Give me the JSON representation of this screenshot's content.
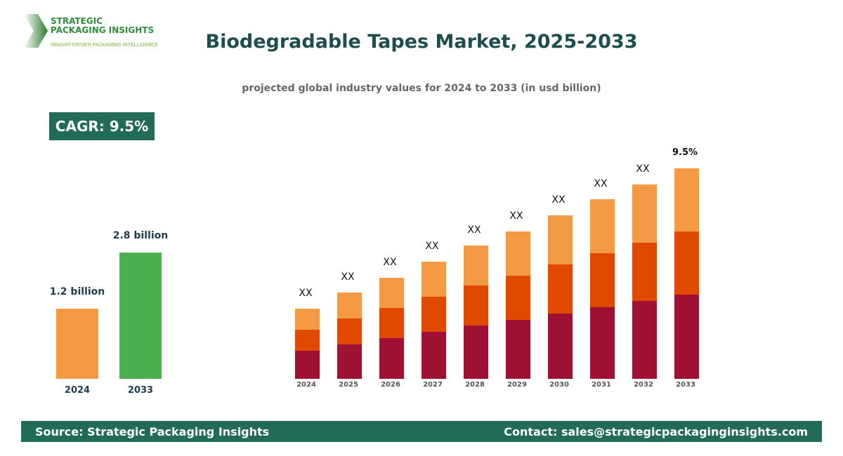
{
  "logo": {
    "line1": "STRATEGIC",
    "line2": "PACKAGING INSIGHTS",
    "tagline": "INSIGHT-DRIVEN PACKAGING INTELLIGENCE"
  },
  "header": {
    "title": "Biodegradable Tapes Market, 2025-2033",
    "subtitle": "projected global industry values for 2024 to 2033 (in usd billion)"
  },
  "cagr_badge": "CAGR: 9.5%",
  "colors": {
    "brand": "#226b58",
    "title": "#1e4d4d",
    "bar_2024": "#f49a44",
    "bar_2033": "#4caf50",
    "segment_top": "#f49a44",
    "segment_mid": "#e04a00",
    "segment_bottom": "#9e1133"
  },
  "chart_data": [
    {
      "type": "bar",
      "categories": [
        "2024",
        "2033"
      ],
      "values": [
        1.2,
        2.8
      ],
      "data_labels": [
        "1.2 billion",
        "2.8 billion"
      ],
      "unit": "usd billion"
    },
    {
      "type": "bar",
      "stacked": true,
      "categories": [
        "2024",
        "2025",
        "2026",
        "2027",
        "2028",
        "2029",
        "2030",
        "2031",
        "2032",
        "2033"
      ],
      "series": [
        {
          "values": [
            40,
            49,
            58,
            67,
            76,
            84,
            93,
            102,
            111,
            120
          ]
        },
        {
          "values": [
            30,
            37,
            43,
            50,
            57,
            63,
            70,
            77,
            83,
            90
          ]
        },
        {
          "values": [
            30,
            37,
            43,
            50,
            57,
            63,
            70,
            77,
            83,
            90
          ]
        }
      ],
      "data_labels": [
        "XX",
        "XX",
        "XX",
        "XX",
        "XX",
        "XX",
        "XX",
        "XX",
        "XX",
        "9.5%"
      ],
      "axes_visible": false,
      "grid": false
    }
  ],
  "footer": {
    "source": "Source: Strategic Packaging Insights",
    "contact": "Contact: sales@strategicpackaginginsights.com"
  }
}
